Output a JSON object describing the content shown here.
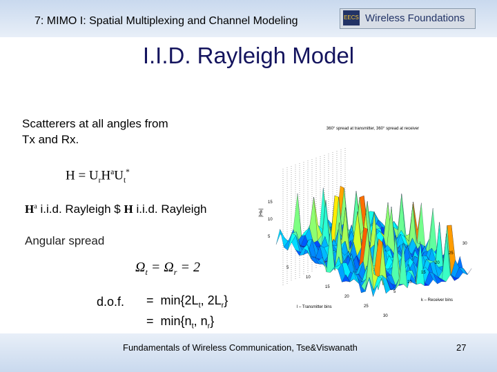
{
  "header": {
    "title": "7: MIMO I: Spatial Multiplexing and Channel Modeling",
    "logo_mark": "EECS",
    "logo_text": "Wireless Foundations"
  },
  "slide": {
    "title": "I.I.D. Rayleigh Model",
    "intro": [
      "Scatterers at all angles from",
      "Tx and Rx."
    ],
    "decomposition": [
      "H = U",
      "r",
      "H",
      "a",
      "U",
      "t",
      "*"
    ],
    "equivalence": [
      "H",
      "a",
      "i.i.d. Rayleigh $",
      "H",
      "i.i.d. Rayleigh"
    ],
    "angular_spread_label": "Angular spread",
    "angular_spread": [
      "Ω",
      "t",
      " = Ω",
      "r",
      " = 2"
    ],
    "dof_label": "d.o.f.",
    "dof_lines": [
      [
        "=",
        "min{2L",
        "t",
        ", 2L",
        "r",
        "}"
      ],
      [
        "=",
        "min{n",
        "t",
        ", n",
        "r",
        "}"
      ]
    ]
  },
  "figure": {
    "title": "360° spread at transmitter, 360° spread at receiver",
    "z_label": "|H",
    "z_label_sub": "lk",
    "z_label_end": "|",
    "z_ticks": [
      "15",
      "10",
      "5"
    ],
    "l_ticks": [
      "5",
      "10",
      "15",
      "20",
      "25",
      "30"
    ],
    "k_ticks": [
      "5",
      "10",
      "15",
      "20",
      "25",
      "30"
    ],
    "l_label": "l – Transmitter bins",
    "k_label": "k – Receiver bins"
  },
  "footer": {
    "citation": "Fundamentals of Wireless Communication, Tse&Viswanath",
    "page": "27"
  }
}
